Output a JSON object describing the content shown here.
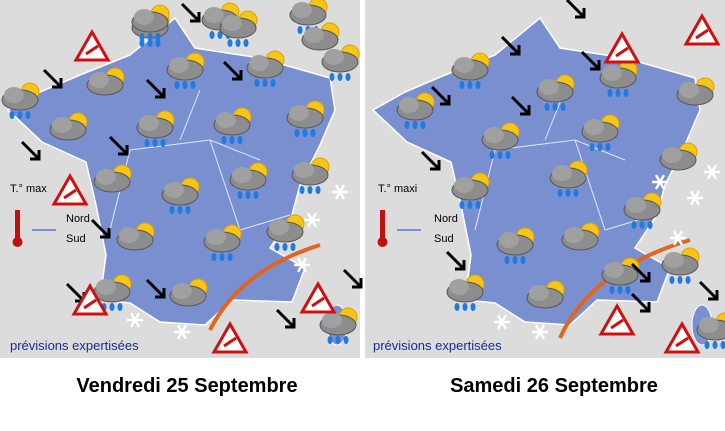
{
  "panels": [
    {
      "legend": {
        "temp": "T.° max",
        "north": "Nord",
        "south": "Sud"
      },
      "footer": "prévisions expertisées",
      "caption": "Vendredi 25 Septembre"
    },
    {
      "legend": {
        "temp": "T.° maxi",
        "north": "Nord",
        "south": "Sud"
      },
      "footer": "prévisions expertisées",
      "caption": "Samedi 26 Septembre"
    }
  ]
}
